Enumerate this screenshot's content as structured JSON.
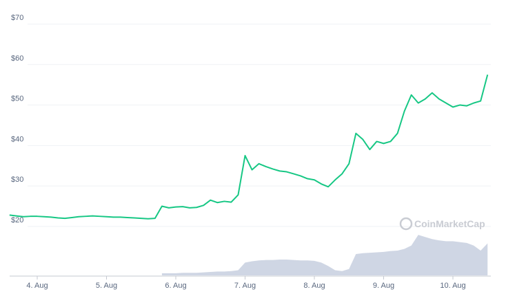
{
  "chart_data": {
    "type": "line",
    "watermark": "CoinMarketCap",
    "categories": [
      null,
      null,
      null,
      null,
      "4. Aug",
      null,
      null,
      null,
      null,
      null,
      null,
      null,
      null,
      null,
      "5. Aug",
      null,
      null,
      null,
      null,
      null,
      null,
      null,
      null,
      null,
      "6. Aug",
      null,
      null,
      null,
      null,
      null,
      null,
      null,
      null,
      null,
      "7. Aug",
      null,
      null,
      null,
      null,
      null,
      null,
      null,
      null,
      null,
      "8. Aug",
      null,
      null,
      null,
      null,
      null,
      null,
      null,
      null,
      null,
      "9. Aug",
      null,
      null,
      null,
      null,
      null,
      null,
      null,
      null,
      null,
      "10. Aug",
      null,
      null,
      null,
      null,
      null
    ],
    "series": [
      {
        "color": "#16c784",
        "values": [
          22.8,
          22.6,
          22.4,
          22.5,
          22.5,
          22.4,
          22.3,
          22.1,
          22.0,
          22.2,
          22.4,
          22.5,
          22.6,
          22.5,
          22.4,
          22.3,
          22.3,
          22.2,
          22.1,
          22.0,
          21.9,
          22.0,
          25.0,
          24.6,
          24.8,
          24.9,
          24.6,
          24.7,
          25.2,
          26.5,
          25.9,
          26.2,
          26.0,
          27.8,
          37.5,
          34.0,
          35.5,
          34.8,
          34.2,
          33.7,
          33.5,
          33.0,
          32.5,
          31.8,
          31.5,
          30.5,
          29.8,
          31.5,
          33.0,
          35.5,
          43.0,
          41.5,
          39.0,
          41.0,
          40.5,
          41.0,
          43.0,
          48.5,
          52.5,
          50.5,
          51.5,
          53.0,
          51.5,
          50.5,
          49.5,
          50.0,
          49.8,
          50.5,
          51.0,
          57.5
        ]
      },
      {
        "color": "#cfd6e4",
        "axis": "y2",
        "values": [
          null,
          null,
          null,
          null,
          null,
          null,
          null,
          null,
          null,
          null,
          null,
          null,
          null,
          null,
          null,
          null,
          null,
          null,
          null,
          null,
          null,
          null,
          5,
          5,
          5,
          6,
          6,
          6,
          7,
          8,
          9,
          9,
          10,
          12,
          30,
          33,
          35,
          36,
          36,
          37,
          37,
          36,
          35,
          35,
          34,
          30,
          22,
          12,
          10,
          15,
          50,
          52,
          53,
          54,
          55,
          57,
          58,
          62,
          70,
          95,
          90,
          85,
          82,
          80,
          80,
          78,
          76,
          70,
          58,
          75
        ]
      }
    ],
    "ylim": [
      7.9,
      70
    ],
    "yticks": [
      {
        "value": 20,
        "label": "$20"
      },
      {
        "value": 30,
        "label": "$30"
      },
      {
        "value": 40,
        "label": "$40"
      },
      {
        "value": 50,
        "label": "$50"
      },
      {
        "value": 60,
        "label": "$60"
      },
      {
        "value": 70,
        "label": "$70"
      }
    ],
    "y2lim": [
      0,
      100
    ],
    "grid": true
  }
}
